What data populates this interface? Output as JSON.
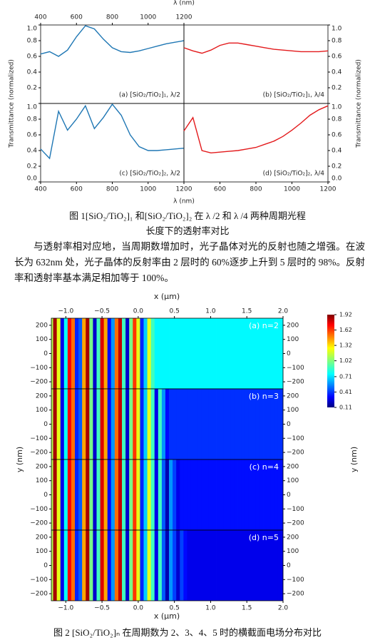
{
  "chart_data": [
    {
      "type": "line",
      "label": "(a) [SiO₂/TiO₂]₁, λ/2",
      "color": "#1f77b4",
      "side": "left",
      "xaxis": "top",
      "x": [
        400,
        450,
        500,
        550,
        600,
        650,
        700,
        750,
        800,
        850,
        900,
        950,
        1000,
        1050,
        1100,
        1150,
        1200
      ],
      "values": [
        0.63,
        0.66,
        0.6,
        0.68,
        0.85,
        0.99,
        0.95,
        0.82,
        0.71,
        0.66,
        0.65,
        0.67,
        0.7,
        0.73,
        0.76,
        0.78,
        0.8
      ],
      "xlim": [
        400,
        1200
      ],
      "ylim": [
        0,
        1
      ],
      "xticks": [
        400,
        600,
        800,
        1000,
        1200
      ],
      "yticks": [
        0.2,
        0.4,
        0.6,
        0.8,
        {
          "value": 1,
          "label": "1.0"
        }
      ]
    },
    {
      "type": "line",
      "label": "(b) [SiO₂/TiO₂]₁, λ/4",
      "color": "#e31a1c",
      "side": "right",
      "xaxis": "none",
      "x": [
        400,
        450,
        500,
        550,
        600,
        650,
        700,
        750,
        800,
        850,
        900,
        950,
        1000,
        1050,
        1100,
        1150,
        1200
      ],
      "values": [
        0.71,
        0.67,
        0.64,
        0.68,
        0.74,
        0.77,
        0.77,
        0.75,
        0.73,
        0.71,
        0.69,
        0.68,
        0.67,
        0.66,
        0.66,
        0.66,
        0.67
      ],
      "xlim": [
        400,
        1200
      ],
      "ylim": [
        0,
        1
      ],
      "yticks": [
        0.2,
        0.4,
        0.6,
        0.8,
        {
          "value": 1,
          "label": "1.0"
        }
      ]
    },
    {
      "type": "line",
      "label": "(c) [SiO₂/TiO₂]₂, λ/2",
      "color": "#1f77b4",
      "side": "left",
      "xaxis": "bottom",
      "x": [
        400,
        450,
        500,
        550,
        600,
        650,
        700,
        750,
        800,
        850,
        900,
        950,
        1000,
        1050,
        1100,
        1150,
        1200
      ],
      "values": [
        0.42,
        0.3,
        0.9,
        0.66,
        0.8,
        0.97,
        0.68,
        0.82,
        0.99,
        0.85,
        0.6,
        0.45,
        0.4,
        0.4,
        0.41,
        0.42,
        0.43
      ],
      "xlim": [
        400,
        1200
      ],
      "ylim": [
        0,
        1
      ],
      "xticks": [
        400,
        600,
        800,
        1000,
        1200
      ],
      "yticks": [
        {
          "value": 0,
          "label": "0.0"
        },
        0.2,
        0.4,
        0.6,
        0.8,
        {
          "value": 1,
          "label": "1.0"
        }
      ]
    },
    {
      "type": "line",
      "label": "(d) [SiO₂/TiO₂]₂, λ/4",
      "color": "#e31a1c",
      "side": "right",
      "xaxis": "bottom",
      "x": [
        400,
        450,
        500,
        550,
        600,
        650,
        700,
        750,
        800,
        850,
        900,
        950,
        1000,
        1050,
        1100,
        1150,
        1200
      ],
      "values": [
        0.65,
        0.82,
        0.4,
        0.37,
        0.38,
        0.39,
        0.4,
        0.42,
        0.44,
        0.48,
        0.52,
        0.58,
        0.66,
        0.75,
        0.85,
        0.92,
        0.97
      ],
      "xlim": [
        400,
        1200
      ],
      "ylim": [
        0,
        1
      ],
      "xticks": [
        600,
        800,
        1000,
        1200
      ],
      "yticks": [
        {
          "value": 0,
          "label": "0.0"
        },
        0.2,
        0.4,
        0.6,
        0.8,
        {
          "value": 1,
          "label": "1.0"
        }
      ]
    },
    {
      "type": "heatmap",
      "label": "(a) n=2",
      "xaxis": "top",
      "x": [
        -1.2,
        -1.15,
        -1.1,
        -1.05,
        -1,
        -0.95,
        -0.9,
        -0.85,
        -0.8,
        -0.75,
        -0.7,
        -0.65,
        -0.6,
        -0.55,
        -0.5,
        -0.45,
        -0.4,
        -0.35,
        -0.3,
        -0.25,
        -0.2,
        -0.15,
        -0.1,
        -0.05,
        0,
        0.05,
        0.1,
        0.15,
        0.2,
        0.25,
        0.3,
        0.35,
        0.4,
        0.45,
        0.5,
        0.55,
        0.6,
        0.65,
        0.7,
        0.75,
        0.8,
        0.85,
        0.9,
        0.95,
        1,
        1.05,
        1.1,
        1.15,
        1.2,
        1.25,
        1.3,
        1.35,
        1.4,
        1.45,
        1.5,
        1.55,
        1.6,
        1.65,
        1.7,
        1.75,
        1.8,
        1.85,
        1.9,
        1.95,
        2
      ],
      "values": [
        1.1,
        1.85,
        1.2,
        0.3,
        0.8,
        1.7,
        1.5,
        0.4,
        0.5,
        1.4,
        1.85,
        1.0,
        0.25,
        0.9,
        1.75,
        1.4,
        0.35,
        0.6,
        1.5,
        1.8,
        0.9,
        0.25,
        1.0,
        1.6,
        1.2,
        0.4,
        0.7,
        1.2,
        0.9,
        0.78,
        0.78,
        0.78,
        0.78,
        0.78,
        0.78,
        0.78,
        0.78,
        0.78,
        0.78,
        0.78,
        0.78,
        0.78,
        0.78,
        0.78,
        0.78,
        0.78,
        0.78,
        0.78,
        0.78,
        0.78,
        0.78,
        0.78,
        0.78,
        0.78,
        0.78,
        0.78,
        0.78,
        0.78,
        0.78,
        0.78,
        0.78,
        0.78,
        0.78,
        0.78,
        0.78
      ],
      "xlim": [
        -1.2,
        2
      ],
      "ylim": [
        -250,
        250
      ],
      "xticks": [
        {
          "value": -1,
          "label": "−1.0"
        },
        {
          "value": -0.5,
          "label": "−0.5"
        },
        {
          "value": 0,
          "label": "0.0"
        },
        0.5,
        {
          "value": 1,
          "label": "1.0"
        },
        1.5,
        {
          "value": 2,
          "label": "2.0"
        }
      ],
      "yticks": [
        {
          "value": -200,
          "label": "−200"
        },
        {
          "value": -100,
          "label": "−100"
        },
        0,
        100,
        200
      ],
      "colorbar": {
        "lim": [
          0.11,
          1.92
        ],
        "ticks": [
          1.92,
          1.62,
          1.32,
          1.02,
          0.71,
          0.41,
          0.11
        ]
      }
    },
    {
      "type": "heatmap",
      "label": "(b) n=3",
      "xaxis": "none",
      "x": [
        -1.2,
        -1.15,
        -1.1,
        -1.05,
        -1,
        -0.95,
        -0.9,
        -0.85,
        -0.8,
        -0.75,
        -0.7,
        -0.65,
        -0.6,
        -0.55,
        -0.5,
        -0.45,
        -0.4,
        -0.35,
        -0.3,
        -0.25,
        -0.2,
        -0.15,
        -0.1,
        -0.05,
        0,
        0.05,
        0.1,
        0.15,
        0.2,
        0.25,
        0.3,
        0.35,
        0.4,
        0.45,
        0.5,
        0.55,
        0.6,
        0.65,
        0.7,
        0.75,
        0.8,
        0.85,
        0.9,
        0.95,
        1,
        1.05,
        1.1,
        1.15,
        1.2,
        1.25,
        1.3,
        1.35,
        1.4,
        1.45,
        1.5,
        1.55,
        1.6,
        1.65,
        1.7,
        1.75,
        1.8,
        1.85,
        1.9,
        1.95,
        2
      ],
      "values": [
        1.1,
        1.85,
        1.2,
        0.3,
        0.8,
        1.7,
        1.5,
        0.4,
        0.5,
        1.4,
        1.85,
        1.0,
        0.25,
        0.9,
        1.75,
        1.4,
        0.35,
        0.6,
        1.5,
        1.8,
        0.9,
        0.25,
        1.0,
        1.6,
        1.2,
        0.4,
        0.7,
        1.2,
        0.9,
        0.3,
        0.9,
        0.6,
        0.35,
        0.42,
        0.42,
        0.42,
        0.42,
        0.42,
        0.42,
        0.42,
        0.42,
        0.42,
        0.42,
        0.42,
        0.42,
        0.42,
        0.42,
        0.42,
        0.42,
        0.42,
        0.42,
        0.42,
        0.42,
        0.42,
        0.42,
        0.42,
        0.42,
        0.42,
        0.42,
        0.42,
        0.42,
        0.42,
        0.42,
        0.42,
        0.42
      ],
      "xlim": [
        -1.2,
        2
      ],
      "ylim": [
        -250,
        250
      ],
      "yticks": [
        {
          "value": -200,
          "label": "−200"
        },
        {
          "value": -100,
          "label": "−100"
        },
        0,
        100,
        200
      ]
    },
    {
      "type": "heatmap",
      "label": "(c) n=4",
      "xaxis": "none",
      "x": [
        -1.2,
        -1.15,
        -1.1,
        -1.05,
        -1,
        -0.95,
        -0.9,
        -0.85,
        -0.8,
        -0.75,
        -0.7,
        -0.65,
        -0.6,
        -0.55,
        -0.5,
        -0.45,
        -0.4,
        -0.35,
        -0.3,
        -0.25,
        -0.2,
        -0.15,
        -0.1,
        -0.05,
        0,
        0.05,
        0.1,
        0.15,
        0.2,
        0.25,
        0.3,
        0.35,
        0.4,
        0.45,
        0.5,
        0.55,
        0.6,
        0.65,
        0.7,
        0.75,
        0.8,
        0.85,
        0.9,
        0.95,
        1,
        1.05,
        1.1,
        1.15,
        1.2,
        1.25,
        1.3,
        1.35,
        1.4,
        1.45,
        1.5,
        1.55,
        1.6,
        1.65,
        1.7,
        1.75,
        1.8,
        1.85,
        1.9,
        1.95,
        2
      ],
      "values": [
        1.1,
        1.85,
        1.2,
        0.3,
        0.8,
        1.7,
        1.5,
        0.4,
        0.5,
        1.4,
        1.85,
        1.0,
        0.25,
        0.9,
        1.75,
        1.4,
        0.35,
        0.6,
        1.5,
        1.8,
        0.9,
        0.25,
        1.0,
        1.6,
        1.2,
        0.4,
        0.7,
        1.2,
        0.9,
        0.3,
        0.9,
        0.5,
        0.2,
        0.6,
        0.45,
        0.3,
        0.36,
        0.36,
        0.36,
        0.36,
        0.36,
        0.36,
        0.36,
        0.36,
        0.36,
        0.36,
        0.36,
        0.36,
        0.36,
        0.36,
        0.36,
        0.36,
        0.36,
        0.36,
        0.36,
        0.36,
        0.36,
        0.36,
        0.36,
        0.36,
        0.36,
        0.36,
        0.36,
        0.36,
        0.36
      ],
      "xlim": [
        -1.2,
        2
      ],
      "ylim": [
        -250,
        250
      ],
      "yticks": [
        {
          "value": -200,
          "label": "−200"
        },
        {
          "value": -100,
          "label": "−100"
        },
        0,
        100,
        200
      ]
    },
    {
      "type": "heatmap",
      "label": "(d) n=5",
      "xaxis": "bottom",
      "x": [
        -1.2,
        -1.15,
        -1.1,
        -1.05,
        -1,
        -0.95,
        -0.9,
        -0.85,
        -0.8,
        -0.75,
        -0.7,
        -0.65,
        -0.6,
        -0.55,
        -0.5,
        -0.45,
        -0.4,
        -0.35,
        -0.3,
        -0.25,
        -0.2,
        -0.15,
        -0.1,
        -0.05,
        0,
        0.05,
        0.1,
        0.15,
        0.2,
        0.25,
        0.3,
        0.35,
        0.4,
        0.45,
        0.5,
        0.55,
        0.6,
        0.65,
        0.7,
        0.75,
        0.8,
        0.85,
        0.9,
        0.95,
        1,
        1.05,
        1.1,
        1.15,
        1.2,
        1.25,
        1.3,
        1.35,
        1.4,
        1.45,
        1.5,
        1.55,
        1.6,
        1.65,
        1.7,
        1.75,
        1.8,
        1.85,
        1.9,
        1.95,
        2
      ],
      "values": [
        1.1,
        1.85,
        1.2,
        0.3,
        0.8,
        1.7,
        1.5,
        0.4,
        0.5,
        1.4,
        1.85,
        1.0,
        0.25,
        0.9,
        1.75,
        1.4,
        0.35,
        0.6,
        1.5,
        1.8,
        0.9,
        0.25,
        1.0,
        1.6,
        1.2,
        0.4,
        0.7,
        1.2,
        0.9,
        0.3,
        0.9,
        0.5,
        0.2,
        0.6,
        0.45,
        0.25,
        0.45,
        0.35,
        0.3,
        0.3,
        0.3,
        0.3,
        0.3,
        0.3,
        0.3,
        0.3,
        0.3,
        0.3,
        0.3,
        0.3,
        0.3,
        0.3,
        0.3,
        0.3,
        0.3,
        0.3,
        0.3,
        0.3,
        0.3,
        0.3,
        0.3,
        0.3,
        0.3,
        0.3,
        0.3
      ],
      "xlim": [
        -1.2,
        2
      ],
      "ylim": [
        -250,
        250
      ],
      "xticks": [
        {
          "value": -1,
          "label": "−1.0"
        },
        {
          "value": -0.5,
          "label": "−0.5"
        },
        {
          "value": 0,
          "label": "0.0"
        },
        0.5,
        {
          "value": 1,
          "label": "1.0"
        },
        1.5,
        {
          "value": 2,
          "label": "2.0"
        }
      ],
      "yticks": [
        {
          "value": -200,
          "label": "−200"
        },
        {
          "value": -100,
          "label": "−100"
        },
        0,
        100,
        200
      ]
    }
  ],
  "figure1": {
    "xlabel": "λ (nm)",
    "ylabel": "Transmittance (normalized)",
    "caption": [
      "图 1[SiO₂/TiO₂]₁ 和[SiO₂/TiO₂]₂ 在 λ /2 和 λ /4 两种周期光程",
      "长度下的透射率对比"
    ]
  },
  "body": "与透射率相对应地，当周期数增加时，光子晶体对光的反射也随之增强。在波长为 632nm 处，光子晶体的反射率由 2 层时的 60%逐步上升到 5 层时的 98%。反射率和透射率基本满足相加等于 100%。",
  "figure2": {
    "xlabel": "x (μm)",
    "ylabel": "y (nm)",
    "caption": "图 2 [SiO₂/TiO₂]ₙ 在周期数为 2、3、4、5 时的横截面电场分布对比"
  }
}
